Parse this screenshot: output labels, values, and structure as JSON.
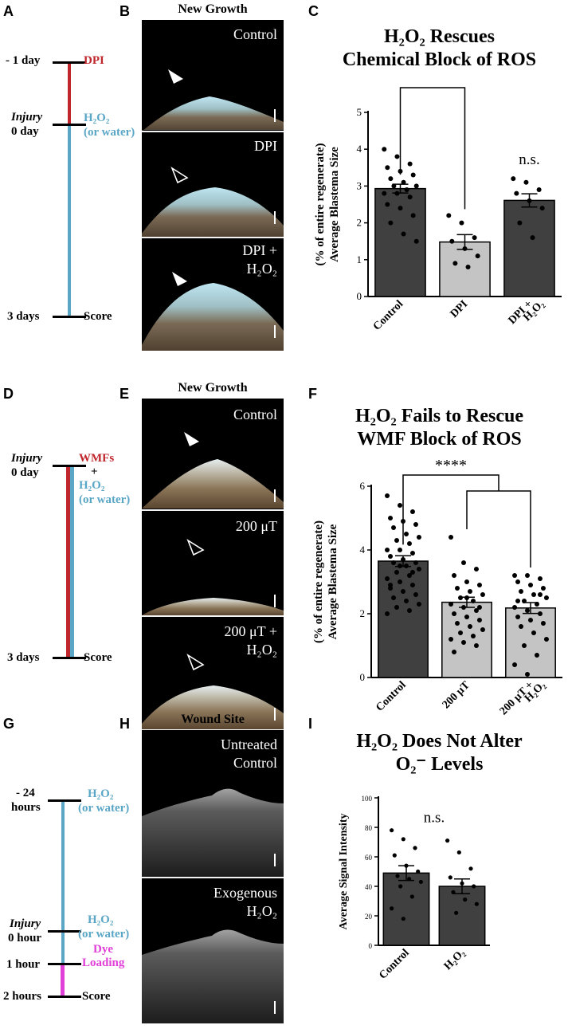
{
  "panels": {
    "A": "A",
    "B": "B",
    "C": "C",
    "D": "D",
    "E": "E",
    "F": "F",
    "G": "G",
    "H": "H",
    "I": "I"
  },
  "timeline_A": {
    "t1": "- 1 day",
    "t2_italic": "Injury",
    "t2": "0 day",
    "t3": "3 days",
    "dpi": "DPI",
    "h2o2": "H₂O₂",
    "h2o2_sub": "(or water)",
    "score": "Score"
  },
  "timeline_D": {
    "t1_italic": "Injury",
    "t1": "0 day",
    "t2": "3 days",
    "wmfs": "WMFs",
    "plus": "+",
    "h2o2": "H₂O₂",
    "h2o2_sub": "(or water)",
    "score": "Score"
  },
  "timeline_G": {
    "t1": "- 24",
    "t1b": "hours",
    "t2_italic": "Injury",
    "t2": "0 hour",
    "t3": "1 hour",
    "t4": "2 hours",
    "h2o2_a": "H₂O₂",
    "h2o2_a_sub": "(or water)",
    "h2o2_b": "H₂O₂",
    "h2o2_b_sub": "(or water)",
    "dye": "Dye",
    "dye2": "Loading",
    "score": "Score"
  },
  "images_B": {
    "header": "New Growth",
    "cap1": "Control",
    "cap2": "DPI",
    "cap3a": "DPI +",
    "cap3b": "H₂O₂"
  },
  "images_E": {
    "header": "New Growth",
    "cap1": "Control",
    "cap2": "200 μT",
    "cap3a": "200 μT +",
    "cap3b": "H₂O₂"
  },
  "images_H": {
    "header": "Wound Site",
    "cap1a": "Untreated",
    "cap1b": "Control",
    "cap2a": "Exogenous",
    "cap2b": "H₂O₂"
  },
  "colors": {
    "dark_bar": "#404040",
    "light_bar": "#c4c4c4",
    "red": "#c0272d",
    "blue": "#5aa6c6",
    "magenta": "#e040d8"
  },
  "chart_data": [
    {
      "panel": "C",
      "type": "bar",
      "title": "H₂O₂ Rescues Chemical Block of ROS",
      "title_lines": [
        "H₂O₂ Rescues",
        "Chemical Block of ROS"
      ],
      "ylabel_lines": [
        "Average Blastema Size",
        "(% of entire regenerate)"
      ],
      "categories": [
        "Control",
        "DPI",
        "DPI +\nH₂O₂"
      ],
      "category_lines": [
        [
          "Control"
        ],
        [
          "DPI"
        ],
        [
          "DPI +",
          "H₂O₂"
        ]
      ],
      "values": [
        2.93,
        1.48,
        2.61
      ],
      "sem": [
        0.12,
        0.2,
        0.18
      ],
      "bar_colors": [
        "#404040",
        "#c4c4c4",
        "#404040"
      ],
      "ylim": [
        0,
        5
      ],
      "yticks": [
        0,
        1,
        2,
        3,
        4,
        5
      ],
      "points": [
        [
          4.0,
          3.8,
          3.6,
          3.5,
          3.4,
          3.3,
          3.2,
          3.1,
          3.0,
          3.0,
          2.9,
          2.8,
          2.8,
          2.7,
          2.5,
          2.4,
          2.2,
          2.0,
          1.7,
          1.5
        ],
        [
          2.2,
          2.0,
          1.6,
          1.5,
          1.3,
          1.1,
          0.9,
          0.8
        ],
        [
          3.2,
          3.1,
          2.9,
          2.8,
          2.6,
          2.4,
          2.0,
          1.6
        ]
      ],
      "annotations": [
        {
          "text": "****",
          "from": 0,
          "to": 1
        },
        {
          "text": "n.s.",
          "at": 2
        }
      ]
    },
    {
      "panel": "F",
      "type": "bar",
      "title": "H₂O₂ Fails to Rescue WMF Block of ROS",
      "title_lines": [
        "H₂O₂ Fails to Rescue",
        "WMF Block of ROS"
      ],
      "ylabel_lines": [
        "Average Blastema Size",
        "(% of entire regenerate)"
      ],
      "categories": [
        "Control",
        "200 μT",
        "200 μT +\nH₂O₂"
      ],
      "category_lines": [
        [
          "Control"
        ],
        [
          "200 μT"
        ],
        [
          "200 μT +",
          "H₂O₂"
        ]
      ],
      "values": [
        3.65,
        2.36,
        2.18
      ],
      "sem": [
        0.17,
        0.16,
        0.17
      ],
      "bar_colors": [
        "#404040",
        "#c4c4c4",
        "#c4c4c4"
      ],
      "ylim": [
        0,
        6
      ],
      "yticks": [
        0,
        2,
        4,
        6
      ],
      "points": [
        [
          5.7,
          5.4,
          5.2,
          5.0,
          4.9,
          4.8,
          4.7,
          4.5,
          4.4,
          4.3,
          4.2,
          4.0,
          4.0,
          3.9,
          3.8,
          3.7,
          3.6,
          3.6,
          3.5,
          3.4,
          3.3,
          3.2,
          3.1,
          3.0,
          2.9,
          2.8,
          2.7,
          2.6,
          2.5,
          2.4,
          2.3,
          2.2,
          2.1,
          2.0,
          3.5,
          3.3,
          2.9
        ],
        [
          4.4,
          3.6,
          3.4,
          3.2,
          3.0,
          2.9,
          2.8,
          2.7,
          2.6,
          2.5,
          2.4,
          2.3,
          2.2,
          2.1,
          2.0,
          1.9,
          1.8,
          1.7,
          1.6,
          1.5,
          1.4,
          1.3,
          1.2,
          1.1,
          1.0,
          0.8,
          2.5,
          2.2
        ],
        [
          3.2,
          3.2,
          3.1,
          3.0,
          2.9,
          2.8,
          2.7,
          2.6,
          2.5,
          2.4,
          2.3,
          2.2,
          2.1,
          2.0,
          1.9,
          1.8,
          1.7,
          1.6,
          1.4,
          1.2,
          1.0,
          0.7,
          0.4,
          0.1,
          2.6,
          2.4
        ]
      ],
      "annotations": [
        {
          "text": "****",
          "from": 0,
          "to": [
            1,
            2
          ]
        }
      ]
    },
    {
      "panel": "I",
      "type": "bar",
      "title": "H₂O₂ Does Not Alter O₂⁻ Levels",
      "title_lines": [
        "H₂O₂ Does Not Alter",
        "O₂⁻ Levels"
      ],
      "ylabel_lines": [
        "Average Signal Intensity"
      ],
      "categories": [
        "Control",
        "H₂O₂"
      ],
      "category_lines": [
        [
          "Control"
        ],
        [
          "H₂O₂"
        ]
      ],
      "values": [
        49,
        40
      ],
      "sem": [
        5,
        5
      ],
      "bar_colors": [
        "#404040",
        "#404040"
      ],
      "ylim": [
        0,
        100
      ],
      "yticks": [
        0,
        20,
        40,
        60,
        80,
        100
      ],
      "points": [
        [
          78,
          72,
          66,
          61,
          54,
          50,
          47,
          45,
          43,
          40,
          33,
          25,
          18
        ],
        [
          71,
          63,
          52,
          46,
          42,
          40,
          36,
          31,
          28,
          22
        ]
      ],
      "annotations": [
        {
          "text": "n.s.",
          "at": 0.5
        }
      ]
    }
  ]
}
